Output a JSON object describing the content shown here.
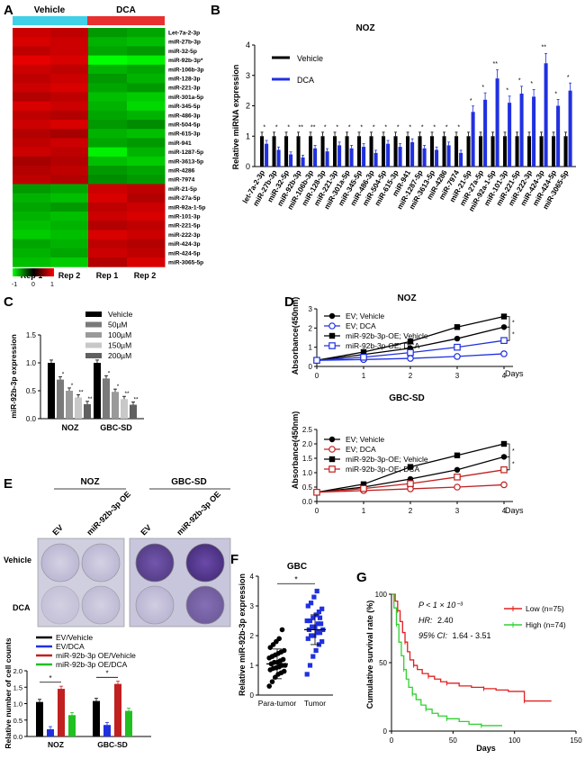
{
  "panel_letters": [
    "A",
    "B",
    "C",
    "D",
    "E",
    "F",
    "G"
  ],
  "colors": {
    "vehicle_bar": "#40d0e8",
    "dca_bar": "#e83030",
    "black": "#000000",
    "blue": "#2030e0",
    "red": "#c02020",
    "green": "#20c020",
    "gray": "#888888"
  },
  "chart_data": [
    {
      "type": "heatmap",
      "panel": "A",
      "groups": [
        "Vehicle",
        "DCA"
      ],
      "columns": [
        "Rep 1",
        "Rep 2",
        "Rep 1",
        "Rep 2"
      ],
      "rows": [
        "Let-7a-2-3p",
        "miR-27b-3p",
        "miR-32-5p",
        "miR-92b-3p*",
        "miR-106b-3p",
        "miR-128-3p",
        "miR-221-3p",
        "miR-301a-5p",
        "miR-345-5p",
        "miR-486-3p",
        "miR-504-5p",
        "miR-615-3p",
        "miR-941",
        "miR-1287-5p",
        "miR-3613-5p",
        "miR-4286",
        "miR-7974",
        "miR-21-5p",
        "miR-27a-5p",
        "miR-92a-1-5p",
        "miR-101-3p",
        "miR-221-5p",
        "miR-222-3p",
        "miR-424-3p",
        "miR-424-5p",
        "miR-3065-5p"
      ],
      "values": [
        [
          0.8,
          0.75,
          -0.6,
          -0.65
        ],
        [
          0.85,
          0.8,
          -0.7,
          -0.75
        ],
        [
          0.75,
          0.8,
          -0.65,
          -0.6
        ],
        [
          0.9,
          0.85,
          -1.0,
          -0.95
        ],
        [
          0.8,
          0.75,
          -0.7,
          -0.65
        ],
        [
          0.75,
          0.8,
          -0.6,
          -0.7
        ],
        [
          0.8,
          0.85,
          -0.65,
          -0.6
        ],
        [
          0.7,
          0.75,
          -0.75,
          -0.8
        ],
        [
          0.85,
          0.8,
          -0.7,
          -0.85
        ],
        [
          0.75,
          0.7,
          -0.65,
          -0.7
        ],
        [
          0.8,
          0.85,
          -0.6,
          -0.55
        ],
        [
          0.7,
          0.65,
          -0.7,
          -0.75
        ],
        [
          0.75,
          0.8,
          -0.65,
          -0.6
        ],
        [
          0.8,
          0.75,
          -0.95,
          -0.7
        ],
        [
          0.65,
          0.7,
          -0.75,
          -0.8
        ],
        [
          0.7,
          0.75,
          -0.6,
          -0.65
        ],
        [
          0.75,
          0.7,
          -0.55,
          -0.6
        ],
        [
          -0.6,
          -0.65,
          0.8,
          0.75
        ],
        [
          -0.7,
          -0.75,
          0.85,
          0.7
        ],
        [
          -0.65,
          -0.6,
          0.75,
          0.8
        ],
        [
          -0.7,
          -0.75,
          0.8,
          0.85
        ],
        [
          -0.75,
          -0.7,
          0.7,
          0.75
        ],
        [
          -0.8,
          -0.75,
          0.85,
          0.8
        ],
        [
          -0.65,
          -0.7,
          0.75,
          0.7
        ],
        [
          -0.7,
          -0.65,
          0.8,
          0.75
        ],
        [
          -0.75,
          -0.8,
          0.7,
          0.85
        ]
      ],
      "scale": {
        "ticks": [
          "-1",
          "0",
          "1"
        ],
        "low_color": "#00ff00",
        "mid_color": "#000000",
        "high_color": "#ff0000"
      }
    },
    {
      "type": "bar",
      "panel": "B",
      "title": "NOZ",
      "ylabel": "Relative miRNA expression",
      "ylim": [
        0,
        4
      ],
      "yticks": [
        "0",
        "1",
        "2",
        "3",
        "4"
      ],
      "categories": [
        "let-7a-2-3p",
        "miR-27b-3p",
        "miR-32-5p",
        "miR-92b-3p",
        "miR-106b-3p",
        "miR-128-3p",
        "miR-221-3p",
        "miR-301a-5p",
        "miR-345-5p",
        "miR-486-3p",
        "miR-504-5p",
        "miR-615-3p",
        "miR-941",
        "miR-1287-5p",
        "miR-3613-5p",
        "miR-4286",
        "miR-7974",
        "miR-21-5p",
        "miR-27a-5p",
        "miR-92a-1-5p",
        "miR-101-3p",
        "miR-221-5p",
        "miR-222-3p",
        "miR-424-3p",
        "miR-424-5p",
        "miR-3065-5p"
      ],
      "series": [
        {
          "name": "Vehicle",
          "color": "#000000",
          "values": [
            1,
            1,
            1,
            1,
            1,
            1,
            1,
            1,
            1,
            1,
            1,
            1,
            1,
            1,
            1,
            1,
            1,
            1,
            1,
            1,
            1,
            1,
            1,
            1,
            1,
            1
          ]
        },
        {
          "name": "DCA",
          "color": "#2030e0",
          "values": [
            0.75,
            0.55,
            0.4,
            0.3,
            0.6,
            0.5,
            0.7,
            0.6,
            0.65,
            0.45,
            0.75,
            0.65,
            0.8,
            0.6,
            0.55,
            0.7,
            0.45,
            1.8,
            2.2,
            2.9,
            2.1,
            2.4,
            2.3,
            3.4,
            2.0,
            2.5
          ]
        }
      ],
      "annotations": [
        "*",
        "*",
        "*",
        "**",
        "**",
        "*",
        "*",
        "*",
        "*",
        "*",
        "*",
        "*",
        "*",
        "*",
        "*",
        "*",
        "*",
        "*",
        "*",
        "**",
        "*",
        "*",
        "*",
        "**",
        "*",
        "*"
      ]
    },
    {
      "type": "bar",
      "panel": "C",
      "ylabel": "miR-92b-3p expression",
      "ylim": [
        0,
        1.5
      ],
      "yticks": [
        "0.0",
        "0.5",
        "1.0",
        "1.5"
      ],
      "categories": [
        "NOZ",
        "GBC-SD"
      ],
      "series": [
        {
          "name": "Vehicle",
          "color": "#000000",
          "values": [
            1.0,
            1.0
          ]
        },
        {
          "name": "50µM",
          "color": "#7a7a7a",
          "values": [
            0.7,
            0.72
          ]
        },
        {
          "name": "100µM",
          "color": "#9a9a9a",
          "values": [
            0.5,
            0.48
          ]
        },
        {
          "name": "150µM",
          "color": "#c8c8c8",
          "values": [
            0.38,
            0.35
          ]
        },
        {
          "name": "200µM",
          "color": "#606060",
          "values": [
            0.26,
            0.25
          ]
        }
      ],
      "annotations": [
        "*",
        "*",
        "**",
        "**"
      ]
    },
    {
      "type": "line",
      "panel": "D-top",
      "title": "NOZ",
      "ylabel": "Absorbance(450nm)",
      "xlabel": "Days",
      "x": [
        0,
        1,
        2,
        3,
        4
      ],
      "ylim": [
        0,
        3
      ],
      "yticks": [
        "0",
        "1",
        "2",
        "3"
      ],
      "xticks": [
        "0",
        "1",
        "2",
        "3",
        "4"
      ],
      "series": [
        {
          "name": "EV; Vehicle",
          "color": "#000000",
          "marker": "circle-filled",
          "values": [
            0.32,
            0.62,
            0.95,
            1.45,
            2.05
          ]
        },
        {
          "name": "EV; DCA",
          "color": "#2030e0",
          "marker": "circle-open",
          "values": [
            0.32,
            0.36,
            0.42,
            0.52,
            0.66
          ]
        },
        {
          "name": "miR-92b-3p-OE; Vehicle",
          "color": "#000000",
          "marker": "square-filled",
          "values": [
            0.32,
            0.75,
            1.3,
            2.05,
            2.6
          ]
        },
        {
          "name": "miR-92b-3p-OE; DCA",
          "color": "#2030e0",
          "marker": "square-open",
          "values": [
            0.32,
            0.48,
            0.72,
            1.0,
            1.35
          ]
        }
      ],
      "annotations": [
        "*",
        "*"
      ]
    },
    {
      "type": "line",
      "panel": "D-bottom",
      "title": "GBC-SD",
      "ylabel": "Absorbance(450nm)",
      "xlabel": "Days",
      "x": [
        0,
        1,
        2,
        3,
        4
      ],
      "ylim": [
        0,
        2.5
      ],
      "yticks": [
        "0.0",
        "0.5",
        "1.0",
        "1.5",
        "2.0",
        "2.5"
      ],
      "xticks": [
        "0",
        "1",
        "2",
        "3",
        "4"
      ],
      "series": [
        {
          "name": "EV; Vehicle",
          "color": "#000000",
          "marker": "circle-filled",
          "values": [
            0.32,
            0.5,
            0.78,
            1.1,
            1.55
          ]
        },
        {
          "name": "EV; DCA",
          "color": "#c02020",
          "marker": "circle-open",
          "values": [
            0.32,
            0.38,
            0.44,
            0.5,
            0.58
          ]
        },
        {
          "name": "miR-92b-3p-OE; Vehicle",
          "color": "#000000",
          "marker": "square-filled",
          "values": [
            0.32,
            0.6,
            1.2,
            1.6,
            2.0
          ]
        },
        {
          "name": "miR-92b-3p-OE; DCA",
          "color": "#c02020",
          "marker": "square-open",
          "values": [
            0.32,
            0.45,
            0.62,
            0.85,
            1.1
          ]
        }
      ],
      "annotations": [
        "*",
        "*"
      ]
    },
    {
      "type": "bar",
      "panel": "E",
      "ylabel": "Relative number of cell counts",
      "ylim": [
        0,
        2.0
      ],
      "yticks": [
        "0.0",
        "0.5",
        "1.0",
        "1.5",
        "2.0"
      ],
      "categories": [
        "NOZ",
        "GBC-SD"
      ],
      "series": [
        {
          "name": "EV/Vehicle",
          "color": "#000000",
          "values": [
            1.05,
            1.08
          ]
        },
        {
          "name": "EV/DCA",
          "color": "#2030e0",
          "values": [
            0.22,
            0.35
          ]
        },
        {
          "name": "miR-92b-3p OE/Vehicle",
          "color": "#c02020",
          "values": [
            1.45,
            1.6
          ]
        },
        {
          "name": "miR-92b-3p OE/DCA",
          "color": "#20c020",
          "values": [
            0.65,
            0.78
          ]
        }
      ],
      "annotations": [
        "*",
        "*"
      ]
    },
    {
      "type": "scatter",
      "panel": "F",
      "title": "GBC",
      "ylabel": "Relative miR-92b-3p expression",
      "ylim": [
        0,
        4
      ],
      "yticks": [
        "0",
        "1",
        "2",
        "3",
        "4"
      ],
      "categories": [
        "Para-tumor",
        "Tumor"
      ],
      "series": [
        {
          "name": "Para-tumor",
          "color": "#000000",
          "mean": 1.05,
          "values": [
            0.3,
            0.45,
            0.6,
            0.7,
            0.75,
            0.8,
            0.85,
            0.9,
            0.92,
            0.95,
            1.0,
            1.0,
            1.05,
            1.1,
            1.1,
            1.15,
            1.2,
            1.25,
            1.3,
            1.35,
            1.4,
            1.45,
            1.5,
            1.6,
            1.7,
            1.8,
            1.9,
            2.2
          ]
        },
        {
          "name": "Tumor",
          "color": "#2030e0",
          "mean": 2.2,
          "values": [
            0.7,
            1.0,
            1.3,
            1.5,
            1.7,
            1.8,
            1.9,
            2.0,
            2.0,
            2.1,
            2.1,
            2.2,
            2.2,
            2.3,
            2.3,
            2.4,
            2.4,
            2.5,
            2.5,
            2.6,
            2.7,
            2.8,
            2.9,
            3.0,
            3.1,
            3.3,
            3.5,
            2.6
          ]
        }
      ],
      "annotations": [
        "*"
      ]
    },
    {
      "type": "line",
      "panel": "G",
      "ylabel": "Cumulative survival rate (%)",
      "xlabel": "Days",
      "xlim": [
        0,
        150
      ],
      "ylim": [
        0,
        100
      ],
      "xticks": [
        "0",
        "50",
        "100",
        "150"
      ],
      "yticks": [
        "0",
        "50",
        "100"
      ],
      "stats": {
        "p": "P < 1 × 10⁻³",
        "hr_label": "HR:",
        "hr_value": "2.40",
        "ci_label": "95% CI:",
        "ci_value": "1.64 - 3.51"
      },
      "series": [
        {
          "name": "Low (n=75)",
          "color": "#e02020",
          "x": [
            0,
            3,
            5,
            7,
            9,
            11,
            13,
            15,
            18,
            21,
            25,
            30,
            35,
            40,
            45,
            55,
            65,
            75,
            85,
            95,
            108,
            113,
            130
          ],
          "y": [
            100,
            95,
            88,
            80,
            72,
            65,
            58,
            52,
            48,
            45,
            42,
            40,
            38,
            36,
            35,
            33,
            32,
            31,
            30,
            29,
            22,
            22,
            22
          ]
        },
        {
          "name": "High (n=74)",
          "color": "#30d030",
          "x": [
            0,
            2,
            4,
            6,
            8,
            10,
            12,
            14,
            17,
            20,
            24,
            28,
            33,
            38,
            45,
            55,
            63,
            73,
            90
          ],
          "y": [
            100,
            90,
            78,
            65,
            55,
            45,
            38,
            32,
            27,
            23,
            19,
            16,
            13,
            11,
            9,
            7,
            5,
            4,
            4
          ]
        }
      ]
    }
  ],
  "panel_e": {
    "header_lines": [
      "NOZ",
      "GBC-SD"
    ],
    "col_labels": [
      "EV",
      "miR-92b-3p OE",
      "EV",
      "miR-92b-3p OE"
    ],
    "row_labels": [
      "Vehicle",
      "DCA"
    ]
  }
}
